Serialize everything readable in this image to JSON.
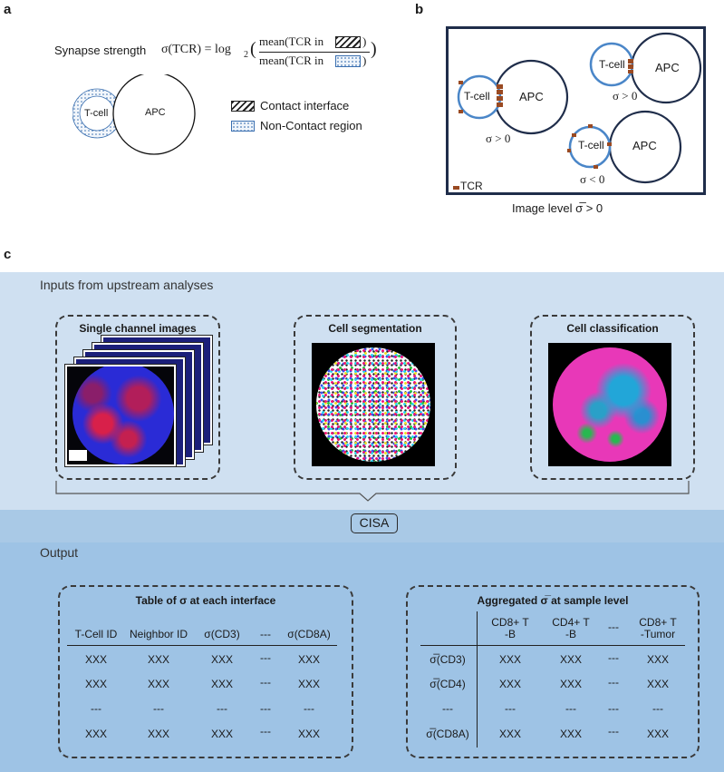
{
  "panel_a": {
    "letter": "a",
    "formula_label": "Synapse strength",
    "sigma_lhs": "σ(TCR) = log",
    "log_base": "2",
    "numerator": "mean(TCR in",
    "denominator": "mean(TCR in",
    "tcell_label": "T-cell",
    "apc_label": "APC",
    "legend_contact": "Contact interface",
    "legend_noncontact": "Non-Contact region"
  },
  "panel_b": {
    "letter": "b",
    "tcell_label": "T-cell",
    "apc_label": "APC",
    "sigma_pos": "σ > 0",
    "sigma_neg": "σ < 0",
    "tcr_legend": "TCR",
    "caption": "Image level σ̅ > 0"
  },
  "panel_c": {
    "letter": "c",
    "inputs_title": "Inputs from upstream analyses",
    "box1_title": "Single channel images",
    "box2_title": "Cell segmentation",
    "box3_title": "Cell classification",
    "cisa_label": "CISA",
    "output_title": "Output",
    "table1": {
      "title": "Table of σ at each interface",
      "headers": [
        "T-Cell ID",
        "Neighbor ID",
        "σ(CD3)",
        "---",
        "σ(CD8A)"
      ],
      "rows": [
        [
          "XXX",
          "XXX",
          "XXX",
          "---",
          "XXX"
        ],
        [
          "XXX",
          "XXX",
          "XXX",
          "---",
          "XXX"
        ],
        [
          "---",
          "---",
          "---",
          "---",
          "---"
        ],
        [
          "XXX",
          "XXX",
          "XXX",
          "---",
          "XXX"
        ]
      ]
    },
    "table2": {
      "title": "Aggregated σ̅ at sample level",
      "col_headers": [
        "CD8+ T\n-B",
        "CD4+ T\n-B",
        "---",
        "CD8+ T\n-Tumor"
      ],
      "row_headers": [
        "σ̅(CD3)",
        "σ̅(CD4)",
        "---",
        "σ̅(CD8A)"
      ],
      "rows": [
        [
          "XXX",
          "XXX",
          "---",
          "XXX"
        ],
        [
          "XXX",
          "XXX",
          "---",
          "XXX"
        ],
        [
          "---",
          "---",
          "---",
          "---"
        ],
        [
          "XXX",
          "XXX",
          "---",
          "XXX"
        ]
      ]
    }
  },
  "colors": {
    "tcell_ring": "#4a86c8",
    "tcr_marker": "#9a4a22",
    "apc_ring": "#1f2d4a",
    "inputs_band": "#cfe0f1",
    "output_band": "#9ec3e5",
    "tissue_blue": "#2a2bd6",
    "tissue_red": "#d8204a",
    "class_pink": "#e838b8",
    "class_cyan": "#22a6d8"
  }
}
